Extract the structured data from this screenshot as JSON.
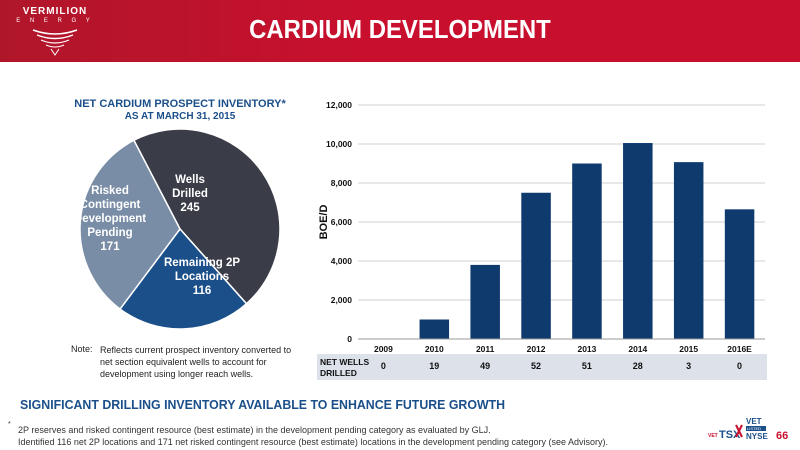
{
  "header": {
    "title": "CARDIUM DEVELOPMENT",
    "logo_text": "VERMILION",
    "logo_sub": "E N E R G Y"
  },
  "pie": {
    "title": "NET CARDIUM PROSPECT INVENTORY*",
    "subtitle": "AS AT MARCH 31, 2015",
    "slices": [
      {
        "label_lines": [
          "Wells",
          "Drilled"
        ],
        "value": 245,
        "color": "#3a3c48"
      },
      {
        "label_lines": [
          "Remaining 2P",
          "Locations"
        ],
        "value": 116,
        "color": "#1b4f8a"
      },
      {
        "label_lines": [
          "Risked",
          "Contingent",
          "Development",
          "Pending"
        ],
        "value": 171,
        "color": "#7a8da6"
      }
    ],
    "note_label": "Note:",
    "note_text": "Reflects current prospect inventory converted to net section equivalent wells to account for development using longer reach wells."
  },
  "chart_data": {
    "type": "bar",
    "categories": [
      "2009",
      "2010",
      "2011",
      "2012",
      "2013",
      "2014",
      "2015",
      "2016E"
    ],
    "values": [
      0,
      1000,
      3800,
      7500,
      9000,
      10050,
      9070,
      6650
    ],
    "ylabel": "BOE/D",
    "ylim": [
      0,
      12000
    ],
    "yticks": [
      "0",
      "2,000",
      "4,000",
      "6,000",
      "8,000",
      "10,000",
      "12,000"
    ],
    "grid": true,
    "bar_color": "#0e3a6e"
  },
  "net_wells": {
    "label": "NET WELLS DRILLED",
    "values": [
      "0",
      "19",
      "49",
      "52",
      "51",
      "28",
      "3",
      "0"
    ]
  },
  "footer": {
    "subtitle": "SIGNIFICANT DRILLING INVENTORY AVAILABLE TO ENHANCE FUTURE GROWTH",
    "footnote_mark": "*",
    "footnote_line1": "2P reserves and risked contingent resource (best estimate) in the development pending category as evaluated by GLJ.",
    "footnote_line2": "Identified 116 net 2P locations and 171 net risked contingent resource (best estimate) locations in the development pending category (see Advisory).",
    "exchange_vet": "VET",
    "exchange_tsx": "TSX",
    "exchange_vet2": "VET",
    "exchange_nyse": "NYSE",
    "exchange_listed": "LISTED",
    "page_number": "66"
  }
}
